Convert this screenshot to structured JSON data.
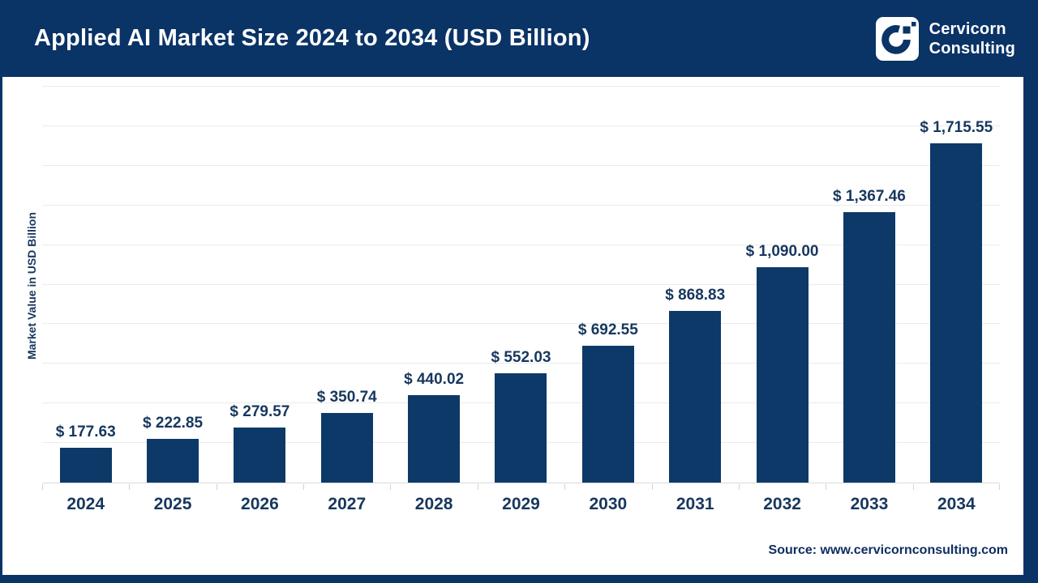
{
  "header": {
    "title": "Applied AI Market Size 2024 to 2034 (USD Billion)",
    "brand_line1": "Cervicorn",
    "brand_line2": "Consulting"
  },
  "chart_data": {
    "type": "bar",
    "title": "Applied AI Market Size 2024 to 2034 (USD Billion)",
    "categories": [
      "2024",
      "2025",
      "2026",
      "2027",
      "2028",
      "2029",
      "2030",
      "2031",
      "2032",
      "2033",
      "2034"
    ],
    "values": [
      177.63,
      222.85,
      279.57,
      350.74,
      440.02,
      552.03,
      692.55,
      868.83,
      1090.0,
      1367.46,
      1715.55
    ],
    "labels": [
      "$ 177.63",
      "$ 222.85",
      "$ 279.57",
      "$ 350.74",
      "$ 440.02",
      "$ 552.03",
      "$ 692.55",
      "$ 868.83",
      "$ 1,090.00",
      "$ 1,367.46",
      "$ 1,715.55"
    ],
    "xlabel": "",
    "ylabel": "Market Value in USD Billion",
    "ylim": [
      0,
      2000
    ],
    "gridline_step": 200,
    "grid": true,
    "legend": false
  },
  "footer": {
    "source": "Source: www.cervicornconsulting.com"
  },
  "colors": {
    "navy_frame": "#0a3366",
    "bar_fill": "#0d3968",
    "text_navy": "#17375e",
    "gridline": "#e9ebed",
    "axis_line": "#d8dadd",
    "white": "#ffffff"
  }
}
